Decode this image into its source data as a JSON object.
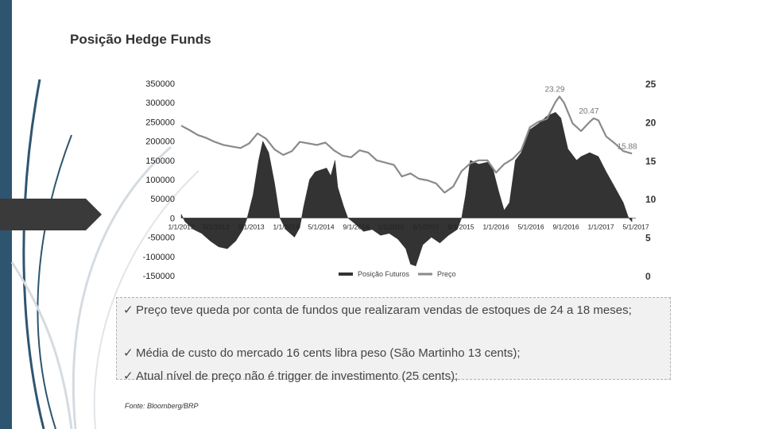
{
  "slide": {
    "title": "Posição Hedge Funds",
    "bullets": [
      "Preço teve queda por conta de fundos que realizaram vendas de estoques de 24 a 18 meses;",
      "Média de custo  do mercado 16 cents libra peso (São Martinho 13 cents);",
      "Atual nível de preço não é trigger de investimento (25 cents);"
    ],
    "bullet_symbol": "✓",
    "source": "Fonte: Bloomberg/BRP"
  },
  "chart_data": {
    "type": "area",
    "title": "",
    "legend_position": "bottom",
    "y_left": {
      "ticks": [
        "350000",
        "300000",
        "250000",
        "200000",
        "150000",
        "100000",
        "50000",
        "0",
        "-50000",
        "-100000",
        "-150000"
      ],
      "range": [
        -150000,
        350000
      ]
    },
    "y_right": {
      "ticks": [
        "25",
        "20",
        "15",
        "10",
        "5",
        "0"
      ],
      "range": [
        0,
        25
      ]
    },
    "x_ticks": [
      "1/1/2013",
      "5/1/2013",
      "9/1/2013",
      "1/1/2014",
      "5/1/2014",
      "9/1/2014",
      "1/1/2015",
      "5/1/2015",
      "9/1/2015",
      "1/1/2016",
      "5/1/2016",
      "9/1/2016",
      "1/1/2017",
      "5/1/2017"
    ],
    "x_range": [
      "2013-01-01",
      "2017-06-15"
    ],
    "annotations": [
      {
        "text": "23.29",
        "date": "2016-09-15",
        "value": 23.29
      },
      {
        "text": "20.47",
        "date": "2017-01-15",
        "value": 20.47
      },
      {
        "text": "15.88",
        "date": "2017-06-01",
        "value": 15.88
      }
    ],
    "series": [
      {
        "name": "Posição Futuros",
        "axis": "left",
        "color": "#333333",
        "points": [
          [
            "2013-01-01",
            10000
          ],
          [
            "2013-01-15",
            -10000
          ],
          [
            "2013-02-15",
            -30000
          ],
          [
            "2013-03-15",
            -40000
          ],
          [
            "2013-04-15",
            -60000
          ],
          [
            "2013-05-15",
            -75000
          ],
          [
            "2013-06-15",
            -80000
          ],
          [
            "2013-07-15",
            -60000
          ],
          [
            "2013-08-10",
            -30000
          ],
          [
            "2013-08-25",
            0
          ],
          [
            "2013-09-15",
            60000
          ],
          [
            "2013-10-05",
            150000
          ],
          [
            "2013-10-20",
            200000
          ],
          [
            "2013-11-10",
            170000
          ],
          [
            "2013-12-01",
            90000
          ],
          [
            "2013-12-20",
            0
          ],
          [
            "2014-01-10",
            -30000
          ],
          [
            "2014-02-10",
            -50000
          ],
          [
            "2014-03-01",
            -25000
          ],
          [
            "2014-03-15",
            30000
          ],
          [
            "2014-04-05",
            100000
          ],
          [
            "2014-04-25",
            120000
          ],
          [
            "2014-05-15",
            125000
          ],
          [
            "2014-06-05",
            130000
          ],
          [
            "2014-06-20",
            110000
          ],
          [
            "2014-07-05",
            150000
          ],
          [
            "2014-07-15",
            80000
          ],
          [
            "2014-08-05",
            30000
          ],
          [
            "2014-08-20",
            0
          ],
          [
            "2014-09-15",
            -15000
          ],
          [
            "2014-10-15",
            -35000
          ],
          [
            "2014-11-15",
            -30000
          ],
          [
            "2014-12-15",
            -45000
          ],
          [
            "2015-01-15",
            -40000
          ],
          [
            "2015-02-15",
            -55000
          ],
          [
            "2015-03-15",
            -80000
          ],
          [
            "2015-04-01",
            -120000
          ],
          [
            "2015-04-20",
            -125000
          ],
          [
            "2015-05-15",
            -70000
          ],
          [
            "2015-06-15",
            -50000
          ],
          [
            "2015-07-15",
            -65000
          ],
          [
            "2015-08-15",
            -45000
          ],
          [
            "2015-09-15",
            -30000
          ],
          [
            "2015-10-01",
            0
          ],
          [
            "2015-10-15",
            60000
          ],
          [
            "2015-11-01",
            150000
          ],
          [
            "2015-12-01",
            140000
          ],
          [
            "2016-01-01",
            145000
          ],
          [
            "2016-01-20",
            130000
          ],
          [
            "2016-02-10",
            70000
          ],
          [
            "2016-03-01",
            20000
          ],
          [
            "2016-03-20",
            40000
          ],
          [
            "2016-04-10",
            150000
          ],
          [
            "2016-05-01",
            170000
          ],
          [
            "2016-06-01",
            230000
          ],
          [
            "2016-07-01",
            245000
          ],
          [
            "2016-08-01",
            265000
          ],
          [
            "2016-09-01",
            275000
          ],
          [
            "2016-09-20",
            260000
          ],
          [
            "2016-10-15",
            180000
          ],
          [
            "2016-11-15",
            150000
          ],
          [
            "2016-12-01",
            160000
          ],
          [
            "2017-01-01",
            170000
          ],
          [
            "2017-02-01",
            160000
          ],
          [
            "2017-03-01",
            120000
          ],
          [
            "2017-04-01",
            80000
          ],
          [
            "2017-05-01",
            40000
          ],
          [
            "2017-05-20",
            0
          ],
          [
            "2017-06-01",
            -10000
          ]
        ]
      },
      {
        "name": "Preço",
        "axis": "right",
        "color": "#8a8a8a",
        "points": [
          [
            "2013-01-01",
            19.5
          ],
          [
            "2013-02-01",
            18.9
          ],
          [
            "2013-03-01",
            18.3
          ],
          [
            "2013-04-01",
            17.9
          ],
          [
            "2013-05-01",
            17.4
          ],
          [
            "2013-06-01",
            17.0
          ],
          [
            "2013-07-01",
            16.8
          ],
          [
            "2013-08-01",
            16.6
          ],
          [
            "2013-09-01",
            17.2
          ],
          [
            "2013-10-01",
            18.5
          ],
          [
            "2013-11-01",
            17.8
          ],
          [
            "2013-12-01",
            16.4
          ],
          [
            "2014-01-01",
            15.7
          ],
          [
            "2014-02-01",
            16.2
          ],
          [
            "2014-03-01",
            17.4
          ],
          [
            "2014-04-01",
            17.2
          ],
          [
            "2014-05-01",
            17.0
          ],
          [
            "2014-06-01",
            17.3
          ],
          [
            "2014-07-01",
            16.3
          ],
          [
            "2014-08-01",
            15.6
          ],
          [
            "2014-09-01",
            15.4
          ],
          [
            "2014-10-01",
            16.3
          ],
          [
            "2014-11-01",
            16.0
          ],
          [
            "2014-12-01",
            15.0
          ],
          [
            "2015-01-01",
            14.7
          ],
          [
            "2015-02-01",
            14.4
          ],
          [
            "2015-03-01",
            12.9
          ],
          [
            "2015-04-01",
            13.3
          ],
          [
            "2015-05-01",
            12.6
          ],
          [
            "2015-06-01",
            12.4
          ],
          [
            "2015-07-01",
            12.0
          ],
          [
            "2015-08-01",
            10.8
          ],
          [
            "2015-09-01",
            11.6
          ],
          [
            "2015-10-01",
            13.6
          ],
          [
            "2015-11-01",
            14.6
          ],
          [
            "2015-12-01",
            15.0
          ],
          [
            "2016-01-01",
            15.0
          ],
          [
            "2016-02-01",
            13.4
          ],
          [
            "2016-03-01",
            14.5
          ],
          [
            "2016-04-01",
            15.2
          ],
          [
            "2016-05-01",
            16.3
          ],
          [
            "2016-06-01",
            19.3
          ],
          [
            "2016-07-01",
            20.0
          ],
          [
            "2016-08-01",
            20.4
          ],
          [
            "2016-09-01",
            22.6
          ],
          [
            "2016-09-15",
            23.29
          ],
          [
            "2016-10-01",
            22.5
          ],
          [
            "2016-11-01",
            19.8
          ],
          [
            "2016-12-01",
            18.8
          ],
          [
            "2017-01-01",
            20.0
          ],
          [
            "2017-01-15",
            20.47
          ],
          [
            "2017-02-01",
            20.2
          ],
          [
            "2017-03-01",
            18.1
          ],
          [
            "2017-04-01",
            17.2
          ],
          [
            "2017-05-01",
            16.2
          ],
          [
            "2017-06-01",
            15.88
          ]
        ]
      }
    ]
  }
}
